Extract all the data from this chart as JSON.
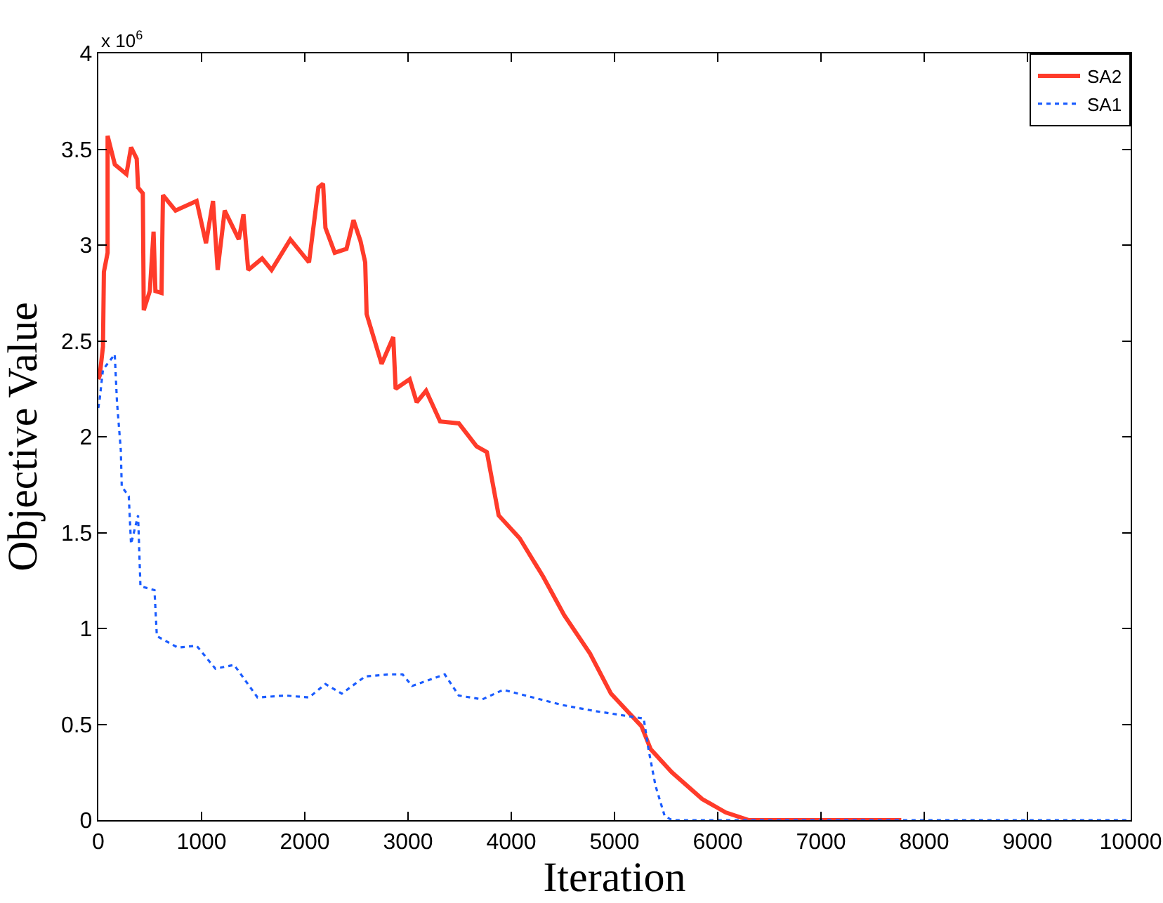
{
  "chart_data": {
    "type": "line",
    "xlabel": "Iteration",
    "ylabel": "Objective Value",
    "annotations": [
      "x 10$^{6}$"
    ],
    "xlim": [
      0,
      10000
    ],
    "xticks": [
      0,
      1000,
      2000,
      3000,
      4000,
      5000,
      6000,
      7000,
      8000,
      9000,
      10000
    ],
    "ylim": [
      0,
      4
    ],
    "yticks": [
      0,
      0.5,
      1,
      1.5,
      2,
      2.5,
      3,
      3.5,
      4
    ],
    "grid": false,
    "legend": "top right",
    "marker": "none",
    "series": [
      {
        "name": "SA2",
        "color": "#ff3b2a",
        "line_style": "solid",
        "x": [
          0,
          14,
          45,
          54,
          90,
          90,
          160,
          272,
          317,
          372,
          385,
          431,
          440,
          499,
          535,
          553,
          612,
          626,
          748,
          952,
          1043,
          1111,
          1156,
          1224,
          1361,
          1406,
          1452,
          1587,
          1678,
          1860,
          2041,
          2132,
          2177,
          2200,
          2290,
          2404,
          2472,
          2540,
          2585,
          2599,
          2744,
          2857,
          2880,
          3016,
          3084,
          3175,
          3311,
          3492,
          3664,
          3764,
          3878,
          4082,
          4309,
          4512,
          4762,
          4966,
          5261,
          5351,
          5555,
          5850,
          6077,
          6303,
          7778
        ],
        "values": [
          2.3,
          2.32,
          2.47,
          2.86,
          2.96,
          3.57,
          3.42,
          3.37,
          3.51,
          3.45,
          3.3,
          3.27,
          2.66,
          2.76,
          3.07,
          2.76,
          2.75,
          3.26,
          3.18,
          3.23,
          3.01,
          3.23,
          2.87,
          3.18,
          3.03,
          3.16,
          2.87,
          2.93,
          2.87,
          3.03,
          2.91,
          3.3,
          3.32,
          3.09,
          2.96,
          2.98,
          3.13,
          3.02,
          2.91,
          2.64,
          2.38,
          2.52,
          2.25,
          2.3,
          2.18,
          2.24,
          2.08,
          2.07,
          1.95,
          1.92,
          1.59,
          1.47,
          1.27,
          1.07,
          0.87,
          0.66,
          0.49,
          0.37,
          0.25,
          0.11,
          0.04,
          0,
          0
        ]
      },
      {
        "name": "SA1",
        "color": "#1a5cff",
        "line_style": "dotted",
        "x": [
          0,
          14,
          45,
          159,
          181,
          218,
          227,
          295,
          317,
          385,
          408,
          544,
          567,
          771,
          952,
          1134,
          1315,
          1542,
          1814,
          2041,
          2200,
          2358,
          2585,
          2812,
          2948,
          3039,
          3356,
          3492,
          3719,
          3923,
          4500,
          4800,
          5283,
          5329,
          5397,
          5487,
          5560,
          10000
        ],
        "values": [
          2.15,
          2.2,
          2.35,
          2.43,
          2.18,
          1.93,
          1.74,
          1.69,
          1.44,
          1.59,
          1.22,
          1.2,
          0.96,
          0.9,
          0.91,
          0.79,
          0.81,
          0.64,
          0.65,
          0.64,
          0.71,
          0.66,
          0.75,
          0.76,
          0.76,
          0.7,
          0.76,
          0.65,
          0.63,
          0.68,
          0.6,
          0.57,
          0.53,
          0.37,
          0.18,
          0.02,
          0,
          0
        ]
      }
    ]
  }
}
